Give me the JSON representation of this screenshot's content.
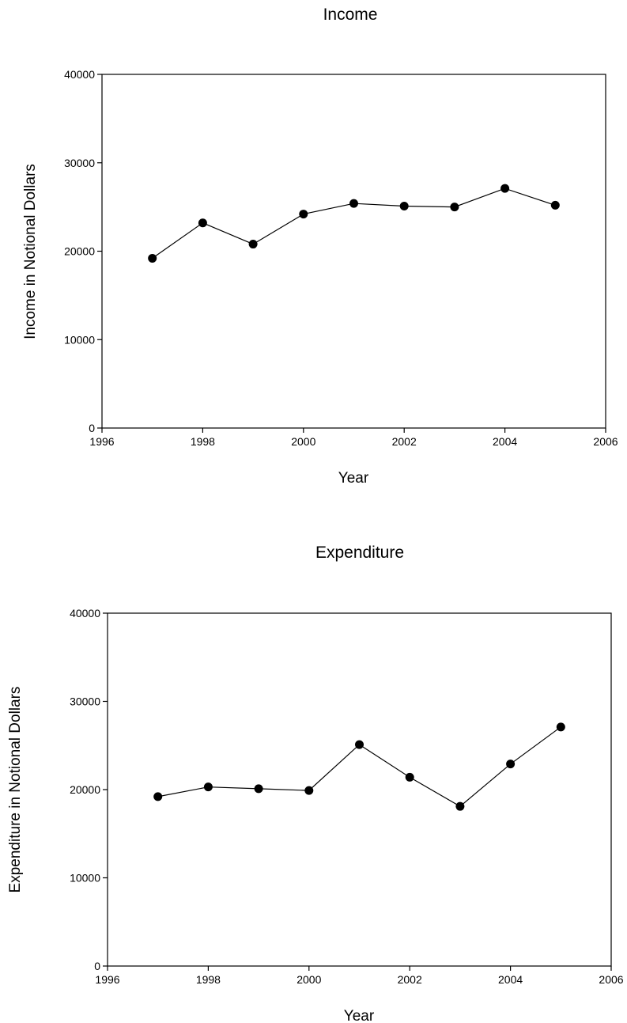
{
  "chart_data": [
    {
      "type": "line",
      "title": "Income",
      "xlabel": "Year",
      "ylabel": "Income in Notional Dollars",
      "xlim": [
        1996,
        2006
      ],
      "ylim": [
        0,
        40000
      ],
      "xticks": [
        1996,
        1998,
        2000,
        2002,
        2004,
        2006
      ],
      "yticks": [
        0,
        10000,
        20000,
        30000,
        40000
      ],
      "grid": false,
      "marker": "filled-circle",
      "line_color": "#000000",
      "x": [
        1997,
        1998,
        1999,
        2000,
        2001,
        2002,
        2003,
        2004,
        2005
      ],
      "y": [
        19200,
        23200,
        20800,
        24200,
        25400,
        25100,
        25000,
        27100,
        25200
      ]
    },
    {
      "type": "line",
      "title": "Expenditure",
      "xlabel": "Year",
      "ylabel": "Expenditure in Notional Dollars",
      "xlim": [
        1996,
        2006
      ],
      "ylim": [
        0,
        40000
      ],
      "xticks": [
        1996,
        1998,
        2000,
        2002,
        2004,
        2006
      ],
      "yticks": [
        0,
        10000,
        20000,
        30000,
        40000
      ],
      "grid": false,
      "marker": "filled-circle",
      "line_color": "#000000",
      "x": [
        1997,
        1998,
        1999,
        2000,
        2001,
        2002,
        2003,
        2004,
        2005
      ],
      "y": [
        19200,
        20300,
        20100,
        19900,
        25100,
        21400,
        18100,
        22900,
        27100
      ]
    }
  ]
}
